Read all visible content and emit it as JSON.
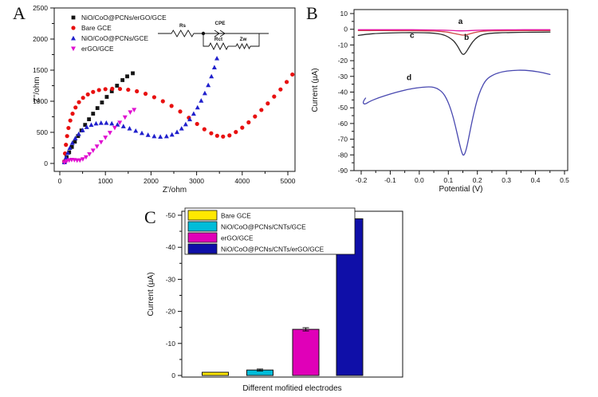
{
  "figure": {
    "background": "#ffffff"
  },
  "panels": [
    {
      "label": "A"
    },
    {
      "label": "B"
    },
    {
      "label": "C"
    }
  ],
  "chart_data": [
    {
      "type": "scatter",
      "panel_label": "A",
      "xlabel": "Z'/ohm",
      "ylabel": "Z''/ohm",
      "xlim": [
        0,
        5000
      ],
      "ylim": [
        0,
        2500
      ],
      "xticks": [
        0,
        1000,
        2000,
        3000,
        4000,
        5000
      ],
      "yticks": [
        0,
        500,
        1000,
        1500,
        2000,
        2500
      ],
      "grid": false,
      "legend_position": "top-left",
      "inset_circuit": {
        "labels": {
          "rs": "Rs",
          "cpe": "CPE",
          "rct": "Rct",
          "zw": "Zw"
        }
      },
      "series": [
        {
          "name": "NiO/CoO@PCNs/erGO/GCE",
          "marker": "square",
          "color": "#141414",
          "points": [
            [
              100,
              25
            ],
            [
              150,
              100
            ],
            [
              205,
              180
            ],
            [
              265,
              265
            ],
            [
              330,
              350
            ],
            [
              400,
              440
            ],
            [
              475,
              530
            ],
            [
              555,
              620
            ],
            [
              640,
              710
            ],
            [
              730,
              800
            ],
            [
              825,
              890
            ],
            [
              925,
              980
            ],
            [
              1030,
              1070
            ],
            [
              1140,
              1160
            ],
            [
              1255,
              1250
            ],
            [
              1375,
              1340
            ],
            [
              1478,
              1400
            ],
            [
              1600,
              1450
            ]
          ]
        },
        {
          "name": "Bare GCE",
          "marker": "circle",
          "color": "#e81010",
          "points": [
            [
              100,
              30
            ],
            [
              115,
              160
            ],
            [
              135,
              300
            ],
            [
              160,
              440
            ],
            [
              190,
              570
            ],
            [
              230,
              690
            ],
            [
              280,
              800
            ],
            [
              345,
              900
            ],
            [
              420,
              985
            ],
            [
              510,
              1055
            ],
            [
              615,
              1110
            ],
            [
              730,
              1150
            ],
            [
              860,
              1180
            ],
            [
              1000,
              1195
            ],
            [
              1150,
              1200
            ],
            [
              1320,
              1198
            ],
            [
              1500,
              1185
            ],
            [
              1690,
              1160
            ],
            [
              1880,
              1120
            ],
            [
              2070,
              1065
            ],
            [
              2260,
              1000
            ],
            [
              2450,
              925
            ],
            [
              2640,
              835
            ],
            [
              2830,
              735
            ],
            [
              3010,
              635
            ],
            [
              3170,
              550
            ],
            [
              3320,
              485
            ],
            [
              3450,
              445
            ],
            [
              3580,
              432
            ],
            [
              3720,
              450
            ],
            [
              3860,
              505
            ],
            [
              4000,
              575
            ],
            [
              4140,
              660
            ],
            [
              4280,
              755
            ],
            [
              4420,
              860
            ],
            [
              4560,
              965
            ],
            [
              4700,
              1075
            ],
            [
              4840,
              1190
            ],
            [
              4975,
              1310
            ],
            [
              5100,
              1430
            ]
          ]
        },
        {
          "name": "NiO/CoO@PCNs/GCE",
          "marker": "triangle-up",
          "color": "#2020cc",
          "points": [
            [
              100,
              20
            ],
            [
              135,
              95
            ],
            [
              175,
              170
            ],
            [
              220,
              250
            ],
            [
              275,
              330
            ],
            [
              340,
              405
            ],
            [
              415,
              475
            ],
            [
              500,
              535
            ],
            [
              590,
              585
            ],
            [
              690,
              620
            ],
            [
              795,
              642
            ],
            [
              905,
              652
            ],
            [
              1020,
              652
            ],
            [
              1140,
              643
            ],
            [
              1265,
              625
            ],
            [
              1395,
              598
            ],
            [
              1530,
              563
            ],
            [
              1665,
              525
            ],
            [
              1800,
              488
            ],
            [
              1935,
              458
            ],
            [
              2070,
              438
            ],
            [
              2205,
              430
            ],
            [
              2340,
              438
            ],
            [
              2460,
              463
            ],
            [
              2570,
              505
            ],
            [
              2670,
              562
            ],
            [
              2760,
              630
            ],
            [
              2850,
              710
            ],
            [
              2935,
              800
            ],
            [
              3020,
              900
            ],
            [
              3100,
              1010
            ],
            [
              3180,
              1130
            ],
            [
              3255,
              1260
            ],
            [
              3325,
              1400
            ],
            [
              3390,
              1545
            ],
            [
              3445,
              1690
            ]
          ]
        },
        {
          "name": "erGO/GCE",
          "marker": "triangle-down",
          "color": "#e010d0",
          "points": [
            [
              100,
              15
            ],
            [
              150,
              35
            ],
            [
              205,
              50
            ],
            [
              260,
              57
            ],
            [
              320,
              55
            ],
            [
              380,
              48
            ],
            [
              440,
              50
            ],
            [
              505,
              68
            ],
            [
              575,
              100
            ],
            [
              650,
              148
            ],
            [
              730,
              207
            ],
            [
              815,
              272
            ],
            [
              905,
              342
            ],
            [
              1000,
              415
            ],
            [
              1100,
              492
            ],
            [
              1205,
              572
            ],
            [
              1315,
              655
            ],
            [
              1430,
              740
            ],
            [
              1545,
              822
            ],
            [
              1630,
              860
            ]
          ]
        }
      ]
    },
    {
      "type": "line",
      "panel_label": "B",
      "xlabel": "Potential (V)",
      "ylabel": "Current (µA)",
      "xlim": [
        -0.2,
        0.5
      ],
      "ylim": [
        10,
        -90
      ],
      "xticks": [
        -0.2,
        -0.1,
        0,
        0.1,
        0.2,
        0.3,
        0.4,
        0.5
      ],
      "xtick_labels": [
        "-0.2",
        "-0.1",
        "0.0",
        "0.1",
        "0.2",
        "0.3",
        "0.4",
        "0.5"
      ],
      "yticks": [
        10,
        0,
        -10,
        -20,
        -30,
        -40,
        -50,
        -60,
        -70,
        -80,
        -90
      ],
      "grid": false,
      "series": [
        {
          "name": "a",
          "color": "#e2119e",
          "label_pos": [
            0.142,
            3.5
          ],
          "points": [
            [
              -0.21,
              -0.3
            ],
            [
              -0.15,
              -0.3
            ],
            [
              -0.1,
              -0.3
            ],
            [
              -0.05,
              -0.32
            ],
            [
              0,
              -0.35
            ],
            [
              0.05,
              -0.45
            ],
            [
              0.09,
              -0.6
            ],
            [
              0.12,
              -0.85
            ],
            [
              0.145,
              -1.05
            ],
            [
              0.17,
              -0.9
            ],
            [
              0.2,
              -0.6
            ],
            [
              0.24,
              -0.45
            ],
            [
              0.28,
              -0.38
            ],
            [
              0.33,
              -0.33
            ],
            [
              0.39,
              -0.3
            ],
            [
              0.45,
              -0.3
            ]
          ]
        },
        {
          "name": "b",
          "color": "#cc4444",
          "label_pos": [
            0.163,
            -6.8
          ],
          "points": [
            [
              -0.21,
              -0.85
            ],
            [
              -0.15,
              -0.85
            ],
            [
              -0.1,
              -0.85
            ],
            [
              -0.05,
              -0.9
            ],
            [
              0,
              -0.95
            ],
            [
              0.04,
              -1.05
            ],
            [
              0.07,
              -1.3
            ],
            [
              0.1,
              -1.9
            ],
            [
              0.12,
              -2.7
            ],
            [
              0.14,
              -3.5
            ],
            [
              0.152,
              -3.8
            ],
            [
              0.165,
              -3.4
            ],
            [
              0.18,
              -2.6
            ],
            [
              0.2,
              -1.7
            ],
            [
              0.22,
              -1.2
            ],
            [
              0.25,
              -1.0
            ],
            [
              0.3,
              -0.9
            ],
            [
              0.37,
              -0.87
            ],
            [
              0.45,
              -0.85
            ]
          ]
        },
        {
          "name": "c",
          "color": "#2b2b2b",
          "label_pos": [
            -0.025,
            -5.6
          ],
          "points": [
            [
              -0.21,
              -3.9
            ],
            [
              -0.18,
              -3.1
            ],
            [
              -0.14,
              -2.6
            ],
            [
              -0.09,
              -2.3
            ],
            [
              -0.03,
              -2.15
            ],
            [
              0.02,
              -2.2
            ],
            [
              0.05,
              -2.5
            ],
            [
              0.08,
              -3.3
            ],
            [
              0.1,
              -4.8
            ],
            [
              0.12,
              -7.5
            ],
            [
              0.133,
              -11.0
            ],
            [
              0.143,
              -14.5
            ],
            [
              0.15,
              -16.3
            ],
            [
              0.158,
              -15.5
            ],
            [
              0.17,
              -12.0
            ],
            [
              0.183,
              -8.0
            ],
            [
              0.2,
              -4.8
            ],
            [
              0.22,
              -3.2
            ],
            [
              0.25,
              -2.5
            ],
            [
              0.29,
              -2.2
            ],
            [
              0.34,
              -2.0
            ],
            [
              0.4,
              -1.85
            ],
            [
              0.45,
              -1.8
            ]
          ]
        },
        {
          "name": "d",
          "color": "#4848b0",
          "label_pos": [
            -0.035,
            -32.5
          ],
          "points": [
            [
              -0.185,
              -43.8
            ],
            [
              -0.196,
              -46.5
            ],
            [
              -0.188,
              -48.0
            ],
            [
              -0.17,
              -45.8
            ],
            [
              -0.14,
              -43.6
            ],
            [
              -0.1,
              -41.2
            ],
            [
              -0.06,
              -39.2
            ],
            [
              -0.02,
              -37.6
            ],
            [
              0.01,
              -36.9
            ],
            [
              0.04,
              -36.6
            ],
            [
              0.06,
              -37.4
            ],
            [
              0.08,
              -40.0
            ],
            [
              0.095,
              -44.5
            ],
            [
              0.11,
              -51.5
            ],
            [
              0.125,
              -62.0
            ],
            [
              0.137,
              -72.0
            ],
            [
              0.147,
              -79.0
            ],
            [
              0.153,
              -80.8
            ],
            [
              0.162,
              -76.5
            ],
            [
              0.172,
              -67.5
            ],
            [
              0.185,
              -55.5
            ],
            [
              0.198,
              -45.5
            ],
            [
              0.212,
              -38.0
            ],
            [
              0.23,
              -32.0
            ],
            [
              0.255,
              -28.8
            ],
            [
              0.285,
              -27.0
            ],
            [
              0.32,
              -26.2
            ],
            [
              0.36,
              -26.0
            ],
            [
              0.4,
              -26.8
            ],
            [
              0.43,
              -27.8
            ],
            [
              0.45,
              -28.8
            ]
          ]
        }
      ]
    },
    {
      "type": "bar",
      "panel_label": "C",
      "xlabel": "Different mofitied electrodes",
      "ylabel": "Current (µA)",
      "ylim": [
        0,
        -50
      ],
      "yticks": [
        0,
        -10,
        -20,
        -30,
        -40,
        -50
      ],
      "grid": false,
      "legend_position": "top-left",
      "categories": [
        "Bare GCE",
        "NiO/CoO@PCNs/CNTs/GCE",
        "erGO/GCE",
        "NiO/CoO@PCNs/CNTs/erGO/GCE"
      ],
      "values": [
        -1.0,
        -1.7,
        -14.4,
        -48.9
      ],
      "errors": [
        0,
        0.3,
        0.5,
        1.2
      ],
      "colors": [
        "#ffe800",
        "#00bcd9",
        "#e000b8",
        "#0f0fa8"
      ]
    }
  ]
}
